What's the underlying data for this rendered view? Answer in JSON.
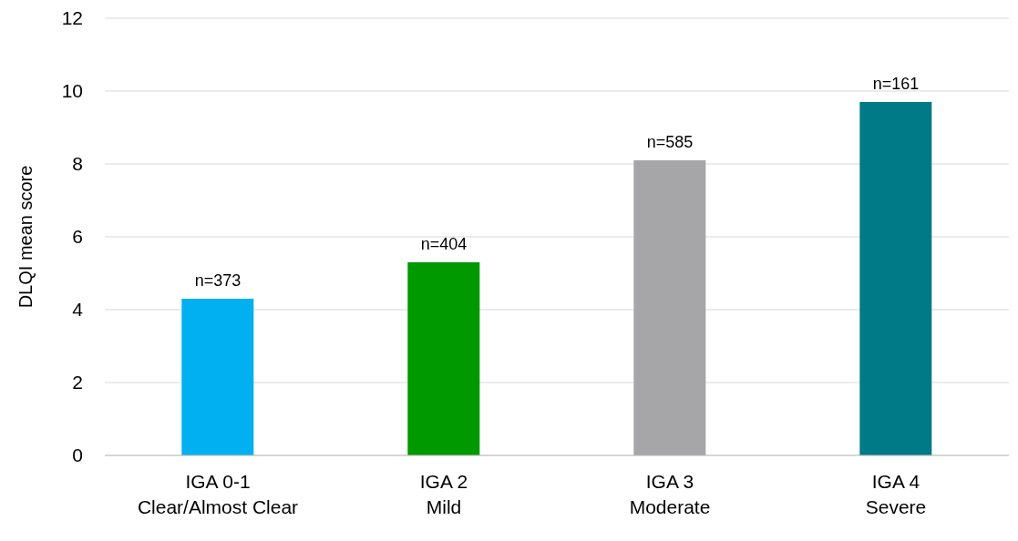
{
  "chart_data": {
    "type": "bar",
    "ylabel": "DLQI mean score",
    "categories": [
      "IGA 0-1\nClear/Almost Clear",
      "IGA 2\nMild",
      "IGA 3\nModerate",
      "IGA 4\nSevere"
    ],
    "values": [
      4.3,
      5.3,
      8.1,
      9.7
    ],
    "colors": [
      "#00b0f0",
      "#009900",
      "#a6a6a8",
      "#007a87"
    ],
    "ylim": [
      0,
      12
    ],
    "yticks": [
      0,
      2,
      4,
      6,
      8,
      10,
      12
    ],
    "grid": "y",
    "annotations": [
      {
        "text": "n=373",
        "x": "IGA 0-1\nClear/Almost Clear",
        "y": 4.3
      },
      {
        "text": "n=404",
        "x": "IGA 2\nMild",
        "y": 5.3
      },
      {
        "text": "n=585",
        "x": "IGA 3\nModerate",
        "y": 8.1
      },
      {
        "text": "n=161",
        "x": "IGA 4\nSevere",
        "y": 9.7
      }
    ]
  }
}
